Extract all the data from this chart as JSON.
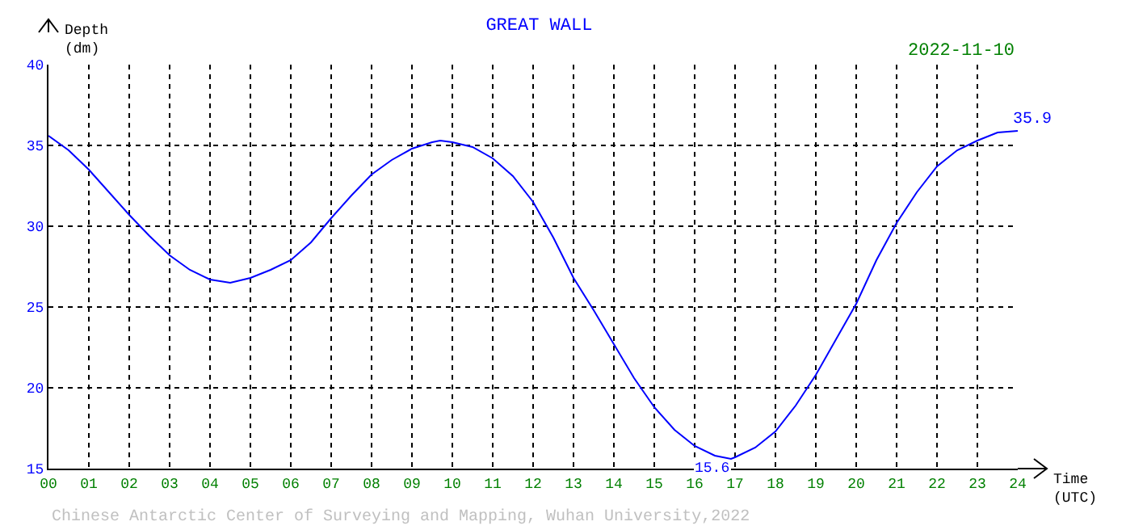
{
  "chart_data": {
    "type": "line",
    "title": "GREAT WALL",
    "xlabel": "Time (UTC)",
    "ylabel": "Depth (dm)",
    "x": [
      0,
      0.5,
      1,
      1.5,
      2,
      2.5,
      3,
      3.5,
      4,
      4.5,
      5,
      5.5,
      6,
      6.5,
      7,
      7.5,
      8,
      8.5,
      9,
      9.5,
      9.7,
      10,
      10.5,
      11,
      11.5,
      12,
      12.5,
      13,
      13.5,
      14,
      14.5,
      15,
      15.5,
      16,
      16.5,
      16.9,
      17,
      17.5,
      18,
      18.5,
      19,
      19.5,
      20,
      20.5,
      21,
      21.5,
      22,
      22.5,
      23,
      23.5,
      24
    ],
    "series": [
      {
        "color": "#0000ff",
        "values": [
          35.6,
          34.7,
          33.5,
          32.1,
          30.7,
          29.4,
          28.2,
          27.3,
          26.7,
          26.5,
          26.8,
          27.3,
          27.9,
          29.0,
          30.5,
          31.9,
          33.2,
          34.1,
          34.8,
          35.2,
          35.3,
          35.2,
          34.9,
          34.2,
          33.1,
          31.5,
          29.3,
          26.8,
          24.8,
          22.7,
          20.6,
          18.8,
          17.4,
          16.4,
          15.8,
          15.6,
          15.7,
          16.3,
          17.3,
          18.9,
          20.8,
          23.0,
          25.2,
          27.9,
          30.2,
          32.1,
          33.7,
          34.7,
          35.3,
          35.8,
          35.9
        ]
      }
    ],
    "xlim": [
      0,
      24
    ],
    "ylim": [
      15,
      40
    ],
    "xticks": [
      {
        "value": 0,
        "label": "00"
      },
      {
        "value": 1,
        "label": "01"
      },
      {
        "value": 2,
        "label": "02"
      },
      {
        "value": 3,
        "label": "03"
      },
      {
        "value": 4,
        "label": "04"
      },
      {
        "value": 5,
        "label": "05"
      },
      {
        "value": 6,
        "label": "06"
      },
      {
        "value": 7,
        "label": "07"
      },
      {
        "value": 8,
        "label": "08"
      },
      {
        "value": 9,
        "label": "09"
      },
      10,
      11,
      12,
      13,
      14,
      15,
      16,
      17,
      18,
      19,
      20,
      21,
      22,
      23,
      24
    ],
    "yticks": [
      15,
      20,
      25,
      30,
      35,
      40
    ],
    "grid": true,
    "marker": "none",
    "line_style": "solid",
    "annotations": [
      {
        "text": "35.9",
        "x": 24,
        "y": 35.9
      },
      {
        "text": "15.6",
        "x": 16.9,
        "y": 15.6
      },
      "2022-11-10",
      "Chinese Antarctic Center of Surveying and Mapping, Wuhan University,2022"
    ]
  }
}
